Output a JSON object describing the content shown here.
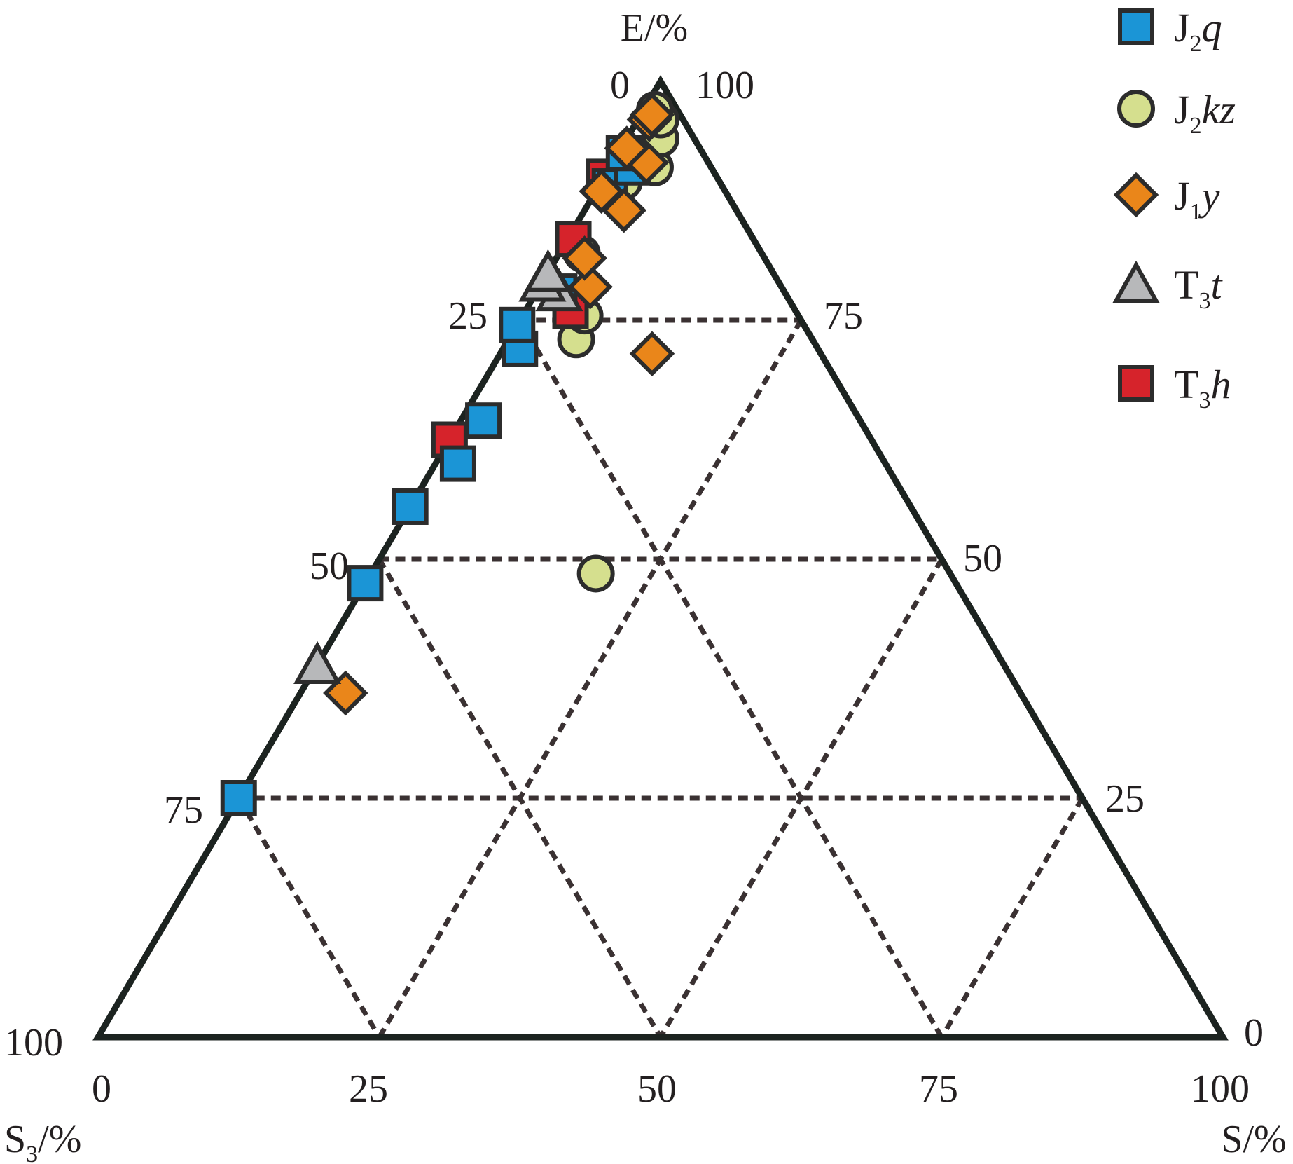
{
  "chart_data": {
    "type": "scatter",
    "subtype": "ternary",
    "axes": {
      "top": {
        "label": "E/%",
        "ticks": [
          "0",
          "25",
          "50",
          "75",
          "100"
        ]
      },
      "left": {
        "label": "S",
        "sub": "3",
        "unit": "/%",
        "ticks": [
          "0",
          "25",
          "50",
          "75",
          "100"
        ]
      },
      "right": {
        "label": "S/%",
        "ticks": [
          "0",
          "25",
          "50",
          "75",
          "100"
        ]
      }
    },
    "apex_labels": {
      "top_left": "0",
      "top_right": "100",
      "left": "100",
      "right": "0"
    },
    "left_edge_ticks": [
      "25",
      "50",
      "75"
    ],
    "right_edge_ticks": [
      "75",
      "50",
      "25"
    ],
    "bottom_ticks": [
      "0",
      "25",
      "50",
      "75",
      "100"
    ],
    "grid": true,
    "legend_position": "top-right",
    "series": [
      {
        "name": "J2q",
        "label_main": "J",
        "label_sub": "2",
        "label_it": "q",
        "marker": "square",
        "color": "#1b95d6",
        "points": [
          [
            25.0,
            75.0,
            0.0
          ],
          [
            47.5,
            52.5,
            0.0
          ],
          [
            55.5,
            44.5,
            0.0
          ],
          [
            60.0,
            38.0,
            2.0
          ],
          [
            64.5,
            33.5,
            2.0
          ],
          [
            72.0,
            26.5,
            1.5
          ],
          [
            74.5,
            25.5,
            0.0
          ],
          [
            78.0,
            20.0,
            2.0
          ],
          [
            89.0,
            10.0,
            1.0
          ],
          [
            91.0,
            7.0,
            2.0
          ],
          [
            92.5,
            7.0,
            0.5
          ]
        ]
      },
      {
        "name": "J2kz",
        "label_main": "J",
        "label_sub": "2",
        "label_it": "kz",
        "marker": "circle",
        "color": "#d5df8e",
        "points": [
          [
            48.5,
            31.5,
            20.0
          ],
          [
            73.0,
            21.0,
            6.0
          ],
          [
            75.5,
            19.0,
            5.5
          ],
          [
            82.0,
            16.0,
            2.0
          ],
          [
            89.5,
            8.5,
            2.0
          ],
          [
            91.0,
            5.0,
            4.0
          ],
          [
            94.0,
            3.0,
            3.0
          ],
          [
            96.0,
            2.0,
            2.0
          ],
          [
            97.0,
            2.0,
            1.0
          ]
        ]
      },
      {
        "name": "J1y",
        "label_main": "J",
        "label_sub": "1",
        "label_it": "y",
        "marker": "diamond",
        "color": "#ea861a",
        "points": [
          [
            36.0,
            60.0,
            4.0
          ],
          [
            71.5,
            15.0,
            13.5
          ],
          [
            78.5,
            17.0,
            4.5
          ],
          [
            81.5,
            16.0,
            2.5
          ],
          [
            86.5,
            10.0,
            3.5
          ],
          [
            88.5,
            11.0,
            0.5
          ],
          [
            91.5,
            5.5,
            3.0
          ],
          [
            93.0,
            6.5,
            0.5
          ],
          [
            96.0,
            3.0,
            1.0
          ],
          [
            96.5,
            2.5,
            1.0
          ]
        ]
      },
      {
        "name": "T3t",
        "label_main": "T",
        "label_sub": "3",
        "label_it": "t",
        "marker": "triangle",
        "color": "#b7b8ba",
        "points": [
          [
            39.0,
            61.0,
            0.0
          ],
          [
            78.0,
            20.0,
            2.0
          ],
          [
            79.0,
            21.0,
            0.0
          ],
          [
            80.0,
            20.0,
            0.0
          ]
        ]
      },
      {
        "name": "T3h",
        "label_main": "T",
        "label_sub": "3",
        "label_it": "h",
        "marker": "square",
        "color": "#d6232b",
        "points": [
          [
            62.5,
            37.5,
            0.0
          ],
          [
            76.0,
            20.0,
            4.0
          ],
          [
            83.5,
            16.0,
            0.5
          ],
          [
            90.0,
            10.0,
            0.0
          ]
        ]
      }
    ]
  }
}
